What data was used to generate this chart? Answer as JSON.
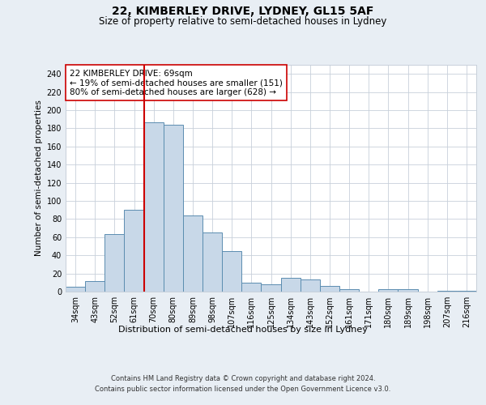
{
  "title_line1": "22, KIMBERLEY DRIVE, LYDNEY, GL15 5AF",
  "title_line2": "Size of property relative to semi-detached houses in Lydney",
  "xlabel": "Distribution of semi-detached houses by size in Lydney",
  "ylabel": "Number of semi-detached properties",
  "footer_line1": "Contains HM Land Registry data © Crown copyright and database right 2024.",
  "footer_line2": "Contains public sector information licensed under the Open Government Licence v3.0.",
  "categories": [
    "34sqm",
    "43sqm",
    "52sqm",
    "61sqm",
    "70sqm",
    "80sqm",
    "89sqm",
    "98sqm",
    "107sqm",
    "116sqm",
    "125sqm",
    "134sqm",
    "143sqm",
    "152sqm",
    "161sqm",
    "171sqm",
    "180sqm",
    "189sqm",
    "198sqm",
    "207sqm",
    "216sqm"
  ],
  "values": [
    5,
    12,
    63,
    90,
    187,
    184,
    84,
    65,
    45,
    10,
    8,
    15,
    13,
    6,
    3,
    0,
    3,
    3,
    0,
    1,
    1
  ],
  "bar_color": "#c8d8e8",
  "bar_edge_color": "#5b8db0",
  "vline_color": "#cc0000",
  "vline_x_index": 4,
  "annotation_text": "22 KIMBERLEY DRIVE: 69sqm\n← 19% of semi-detached houses are smaller (151)\n80% of semi-detached houses are larger (628) →",
  "annotation_box_facecolor": "#ffffff",
  "annotation_box_edgecolor": "#cc0000",
  "ylim": [
    0,
    250
  ],
  "yticks": [
    0,
    20,
    40,
    60,
    80,
    100,
    120,
    140,
    160,
    180,
    200,
    220,
    240
  ],
  "background_color": "#e8eef4",
  "plot_background_color": "#ffffff",
  "grid_color": "#c8d0da",
  "title_fontsize": 10,
  "subtitle_fontsize": 8.5,
  "xlabel_fontsize": 8,
  "ylabel_fontsize": 7.5,
  "tick_fontsize": 7,
  "footer_fontsize": 6,
  "annotation_fontsize": 7.5
}
